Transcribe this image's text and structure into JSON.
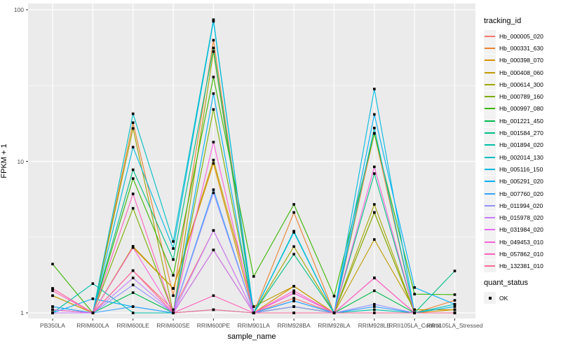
{
  "chart_data": {
    "type": "line",
    "xlabel": "sample_name",
    "ylabel": "FPKM + 1",
    "yscale": "log10",
    "ylim": [
      1,
      100
    ],
    "yticks": [
      "1",
      "10",
      "100"
    ],
    "yminor": [
      3.162,
      31.62
    ],
    "panel_bg": "#EBEBEB",
    "grid_color": "#FFFFFF",
    "tick_color": "#333333",
    "point_color": "#000000",
    "point_shape": "square",
    "legend_position": "right",
    "categories": [
      "PB350LA",
      "RRIM600LA",
      "RRIM600LE",
      "RRIM600SE",
      "RRIM600PE",
      "RRIM901LA",
      "RRIM928BA",
      "RRIM928LA",
      "RRIM928LE",
      "RRII105LA_Control",
      "RRII105LA_Stressed"
    ],
    "legend": {
      "tracking_title": "tracking_id",
      "quant_title": "quant_status",
      "quant_value": "OK"
    },
    "series": [
      {
        "name": "Hb_000005_020",
        "color": "#F8766D",
        "values": [
          1.05,
          1,
          1.9,
          1.05,
          3.5,
          1,
          1.25,
          1,
          1.7,
          1,
          1
        ]
      },
      {
        "name": "Hb_000331_630",
        "color": "#EA8331",
        "values": [
          1.3,
          1,
          18,
          1.3,
          63,
          1,
          4.6,
          1,
          15.3,
          1,
          1.21
        ]
      },
      {
        "name": "Hb_000398_070",
        "color": "#D89000",
        "values": [
          1.05,
          1,
          2.7,
          1.45,
          9.7,
          1,
          1.5,
          1,
          4.6,
          1,
          1.05
        ]
      },
      {
        "name": "Hb_000408_060",
        "color": "#C09B00",
        "values": [
          1.3,
          1,
          2.75,
          1.45,
          10.2,
          1.1,
          1.5,
          1,
          3.05,
          1.05,
          1.05
        ]
      },
      {
        "name": "Hb_000614_300",
        "color": "#A3A500",
        "values": [
          1,
          1,
          16.5,
          1,
          53,
          1,
          2.74,
          1,
          5.2,
          1,
          1
        ]
      },
      {
        "name": "Hb_000789_160",
        "color": "#7CAE00",
        "values": [
          1,
          1,
          4.9,
          1,
          22,
          1,
          1.1,
          1,
          4.6,
          1,
          1
        ]
      },
      {
        "name": "Hb_000997_080",
        "color": "#39B600",
        "values": [
          2.1,
          1,
          7.7,
          1.77,
          36,
          1.74,
          5.2,
          1.29,
          15.3,
          1.33,
          1.32
        ]
      },
      {
        "name": "Hb_001221_450",
        "color": "#00BB4E",
        "values": [
          1,
          1,
          1.36,
          1,
          2.6,
          1,
          1.1,
          1,
          1.4,
          1,
          1
        ]
      },
      {
        "name": "Hb_001584_270",
        "color": "#00C087",
        "values": [
          1.1,
          1,
          8.8,
          2.25,
          56,
          1,
          2.44,
          1,
          8.3,
          1,
          1.89
        ]
      },
      {
        "name": "Hb_001894_020",
        "color": "#00C1A9",
        "values": [
          1,
          1.56,
          1,
          1,
          1.05,
          1,
          1,
          1,
          1.05,
          1,
          1
        ]
      },
      {
        "name": "Hb_002014_130",
        "color": "#00BFC4",
        "values": [
          1,
          1,
          20.6,
          2.96,
          86,
          1,
          3.46,
          1,
          16.6,
          1,
          1.14
        ]
      },
      {
        "name": "Hb_005116_150",
        "color": "#00BAE0",
        "values": [
          1,
          1,
          12.4,
          2.66,
          84,
          1,
          3.4,
          1,
          30,
          1,
          1.1
        ]
      },
      {
        "name": "Hb_005291_020",
        "color": "#00B0F6",
        "values": [
          1,
          1.24,
          1.1,
          1,
          28,
          1,
          1.2,
          1,
          20.4,
          1.47,
          1.14
        ]
      },
      {
        "name": "Hb_007760_020",
        "color": "#35A2FF",
        "values": [
          1.1,
          1,
          1.1,
          1,
          6.5,
          1,
          1.2,
          1,
          1.1,
          1,
          1
        ]
      },
      {
        "name": "Hb_011994_020",
        "color": "#9590FF",
        "values": [
          1,
          1,
          1.53,
          1,
          6.2,
          1,
          1.1,
          1,
          1.14,
          1,
          1
        ]
      },
      {
        "name": "Hb_015978_020",
        "color": "#C77CFF",
        "values": [
          1,
          1,
          1.7,
          1,
          3.5,
          1,
          1.35,
          1,
          1.7,
          1,
          1
        ]
      },
      {
        "name": "Hb_031984_020",
        "color": "#E76BF3",
        "values": [
          1.05,
          1,
          1.9,
          1,
          2.6,
          1,
          1.35,
          1,
          1.7,
          1,
          1
        ]
      },
      {
        "name": "Hb_049453_010",
        "color": "#FA62DB",
        "values": [
          1.45,
          1,
          2.7,
          1,
          13.4,
          1,
          1.35,
          1,
          9.2,
          1,
          1
        ]
      },
      {
        "name": "Hb_057862_010",
        "color": "#FF62BC",
        "values": [
          1.4,
          1,
          6.1,
          1,
          1.3,
          1,
          1.4,
          1,
          1.7,
          1,
          1
        ]
      },
      {
        "name": "Hb_132381_010",
        "color": "#FF6A98",
        "values": [
          1.45,
          1,
          1.9,
          1,
          1.05,
          1,
          1,
          1,
          1,
          1,
          1
        ]
      }
    ]
  }
}
